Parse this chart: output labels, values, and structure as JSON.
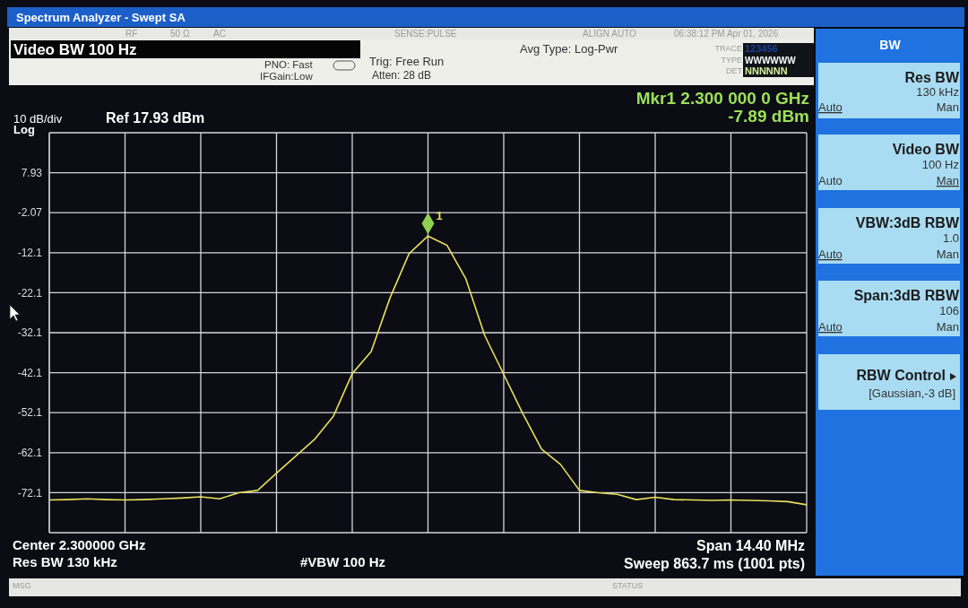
{
  "chart_data": {
    "type": "line",
    "title": "Spectrum Analyzer - Swept SA",
    "categories": [
      null,
      null,
      null,
      null,
      null,
      null,
      null,
      null,
      null,
      null,
      null,
      null,
      null,
      null,
      null,
      null,
      null,
      null,
      null,
      null,
      null,
      null,
      null,
      null,
      null,
      null,
      null,
      null,
      null,
      null,
      null,
      null,
      null,
      null,
      null,
      null,
      null,
      null,
      null,
      null,
      null
    ],
    "values": [
      -73.9,
      -73.8,
      -73.6,
      -73.8,
      -73.9,
      -73.8,
      -73.6,
      -73.4,
      -73.1,
      -73.6,
      -72.1,
      -71.5,
      -67.2,
      -63.0,
      -58.8,
      -53.0,
      -42.3,
      -36.8,
      -23.3,
      -12.3,
      -7.9,
      -10.2,
      -18.6,
      -32.8,
      -42.5,
      -52.2,
      -61.2,
      -65.0,
      -71.5,
      -72.1,
      -72.5,
      -73.8,
      -73.2,
      -73.8,
      -73.9,
      -74.0,
      -73.9,
      -74.0,
      -74.1,
      -74.3,
      -75.1
    ],
    "color": "#e8e05a",
    "ylim": [
      -82.07,
      17.93
    ],
    "yticks": [
      {
        "value": -82.07,
        "label": null
      },
      {
        "value": -72.07,
        "label": "-72.1"
      },
      {
        "value": -62.07,
        "label": "-62.1"
      },
      {
        "value": -52.07,
        "label": "-52.1"
      },
      {
        "value": -42.07,
        "label": "-42.1"
      },
      {
        "value": -32.07,
        "label": "-32.1"
      },
      {
        "value": -22.07,
        "label": "-22.1"
      },
      {
        "value": -12.07,
        "label": "-12.1"
      },
      -2.07,
      7.93,
      {
        "value": 17.93,
        "label": null
      }
    ],
    "grid": true,
    "marker": "none",
    "line_style": "solid",
    "annotations": [
      "Video BW 100 Hz",
      "PNO: Fast",
      "IFGain:Low",
      "Trig: Free Run",
      "Atten: 28 dB",
      "Avg Type: Log-Pwr",
      "RF",
      "50 Ω",
      "AC",
      "SENSE:PULSE",
      "ALIGN AUTO",
      "06:38:12 PM Apr 01, 2026",
      "TRACE",
      "123456",
      "TYPE",
      "WWWWWW",
      "DET",
      "NNNNNN",
      "Mkr1 2.300 000 0 GHz",
      "-7.89 dBm",
      "10 dB/div",
      "Ref 17.93 dBm",
      "Log",
      "Center 2.300000 GHz",
      "Res BW 130 kHz",
      "#VBW 100 Hz",
      "Span 14.40 MHz",
      "Sweep  863.7 ms (1001 pts)",
      "MSG",
      "STATUS",
      "BW",
      "Res BW",
      "130 kHz",
      "Auto",
      "Man",
      "Video BW",
      "100 Hz",
      "Auto",
      "Man",
      "VBW:3dB RBW",
      "1.0",
      "Auto",
      "Man",
      "Span:3dB RBW",
      "106",
      "Auto",
      "Man",
      "RBW Control",
      "[Gaussian,-3 dB]",
      {
        "text": "1",
        "y": -7.89
      }
    ]
  }
}
